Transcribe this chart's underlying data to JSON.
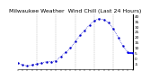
{
  "title": "Milwaukee Weather  Wind Chill (Last 24 Hours)",
  "x_values": [
    0,
    1,
    2,
    3,
    4,
    5,
    6,
    7,
    8,
    9,
    10,
    11,
    12,
    13,
    14,
    15,
    16,
    17,
    18,
    19,
    20,
    21,
    22,
    23,
    24
  ],
  "y_values": [
    -4,
    -6,
    -7,
    -6,
    -5,
    -4,
    -3,
    -3,
    -2,
    2,
    6,
    10,
    16,
    22,
    27,
    32,
    36,
    38,
    37,
    34,
    28,
    20,
    12,
    6,
    5
  ],
  "line_color": "#0000cc",
  "marker": ".",
  "marker_size": 1.5,
  "ylim": [
    -10,
    42
  ],
  "xlim": [
    0,
    24
  ],
  "yticks": [
    -5,
    0,
    5,
    10,
    15,
    20,
    25,
    30,
    35,
    40
  ],
  "ytick_labels": [
    "-5",
    "0",
    "5",
    "10",
    "15",
    "20",
    "25",
    "30",
    "35",
    "40"
  ],
  "xticks": [
    0,
    1,
    2,
    3,
    4,
    5,
    6,
    7,
    8,
    9,
    10,
    11,
    12,
    13,
    14,
    15,
    16,
    17,
    18,
    19,
    20,
    21,
    22,
    23,
    24
  ],
  "grid_vlines": [
    4,
    8,
    12,
    16,
    20
  ],
  "current_value": 5,
  "bg_color": "#ffffff",
  "grid_color": "#888888",
  "title_fontsize": 4.5,
  "tick_fontsize": 3.2,
  "right_axis_color": "#000000",
  "hline_color": "#0000ff",
  "hline_y": 5
}
